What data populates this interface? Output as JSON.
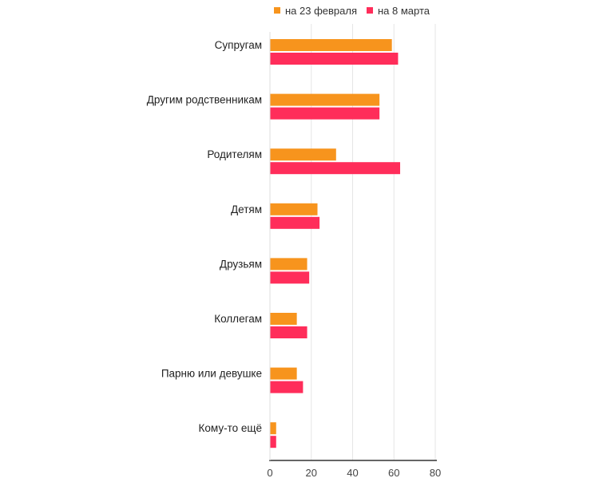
{
  "chart_data": {
    "type": "bar",
    "orientation": "horizontal",
    "categories": [
      "Супругам",
      "Другим родственникам",
      "Родителям",
      "Детям",
      "Друзьям",
      "Коллегам",
      "Парню или девушке",
      "Кому-то ещё"
    ],
    "series": [
      {
        "name": "на 23 февраля",
        "color": "#f7941d",
        "values": [
          59,
          53,
          32,
          23,
          18,
          13,
          13,
          3
        ]
      },
      {
        "name": "на 8 марта",
        "color": "#ff2d5a",
        "values": [
          62,
          53,
          63,
          24,
          19,
          18,
          16,
          3
        ]
      }
    ],
    "xlim": [
      0,
      80
    ],
    "xticks": [
      0,
      20,
      40,
      60,
      80
    ],
    "grid": true,
    "legend_position": "top-right"
  }
}
